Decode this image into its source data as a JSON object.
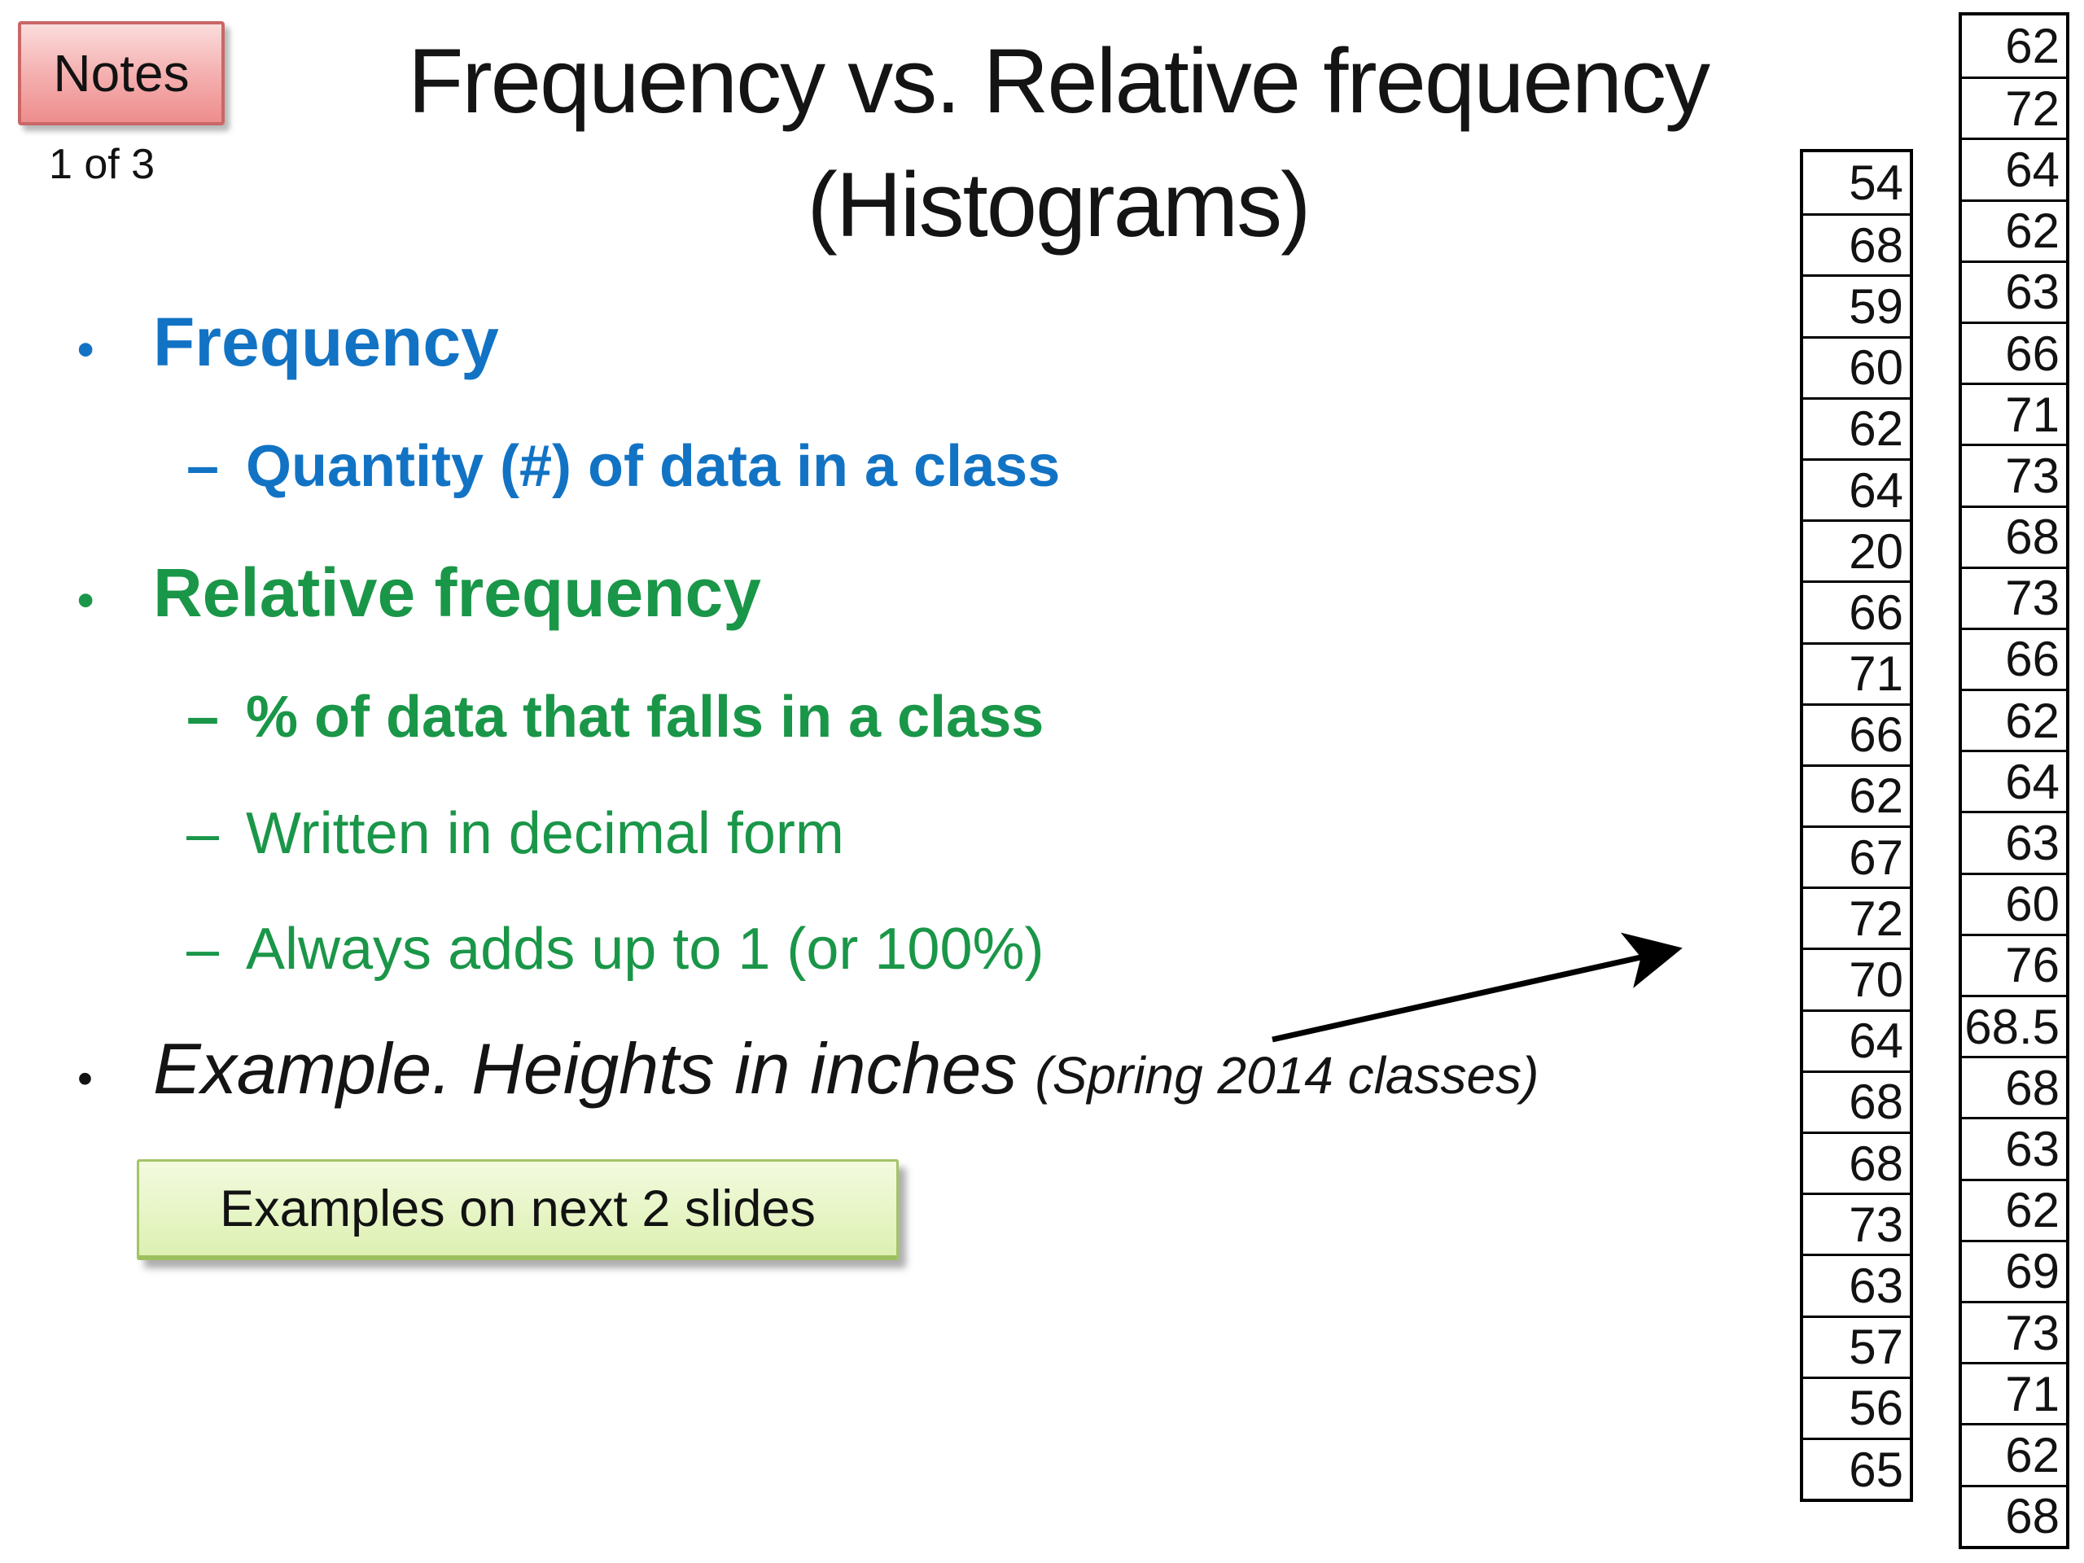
{
  "badge": {
    "label": "Notes",
    "page_indicator": "1 of 3"
  },
  "title": {
    "line1": "Frequency vs. Relative frequency",
    "line2": "(Histograms)"
  },
  "bullets": {
    "frequency": {
      "marker": "•",
      "text": "Frequency"
    },
    "frequency_def": {
      "marker": "–",
      "text": "Quantity (#) of data in a class"
    },
    "relative": {
      "marker": "•",
      "text": "Relative frequency"
    },
    "relative_def1": {
      "marker": "–",
      "text": "% of data that falls in a class"
    },
    "relative_def2": {
      "marker": "–",
      "text": "Written in decimal form"
    },
    "relative_def3": {
      "marker": "–",
      "text": "Always adds up to 1 (or 100%)"
    },
    "example": {
      "marker": "•",
      "text": "Example. Heights in inches",
      "suffix": "(Spring 2014 classes)"
    }
  },
  "callout": {
    "label": "Examples on next 2 slides"
  },
  "colors": {
    "frequency_blue": "#1273c4",
    "relative_green": "#1a9648",
    "notes_badge_fill": "#f5b2b2",
    "notes_badge_border": "#c96767",
    "callout_fill": "#e7f5c6",
    "callout_border": "#a2c468"
  },
  "heights_data": {
    "left_column": [
      54,
      68,
      59,
      60,
      62,
      64,
      20,
      66,
      71,
      66,
      62,
      67,
      72,
      70,
      64,
      68,
      68,
      73,
      63,
      57,
      56,
      65
    ],
    "right_column": [
      62,
      72,
      64,
      62,
      63,
      66,
      71,
      73,
      68,
      73,
      66,
      62,
      64,
      63,
      60,
      76,
      68.5,
      68,
      63,
      62,
      69,
      73,
      71,
      62,
      68
    ]
  }
}
